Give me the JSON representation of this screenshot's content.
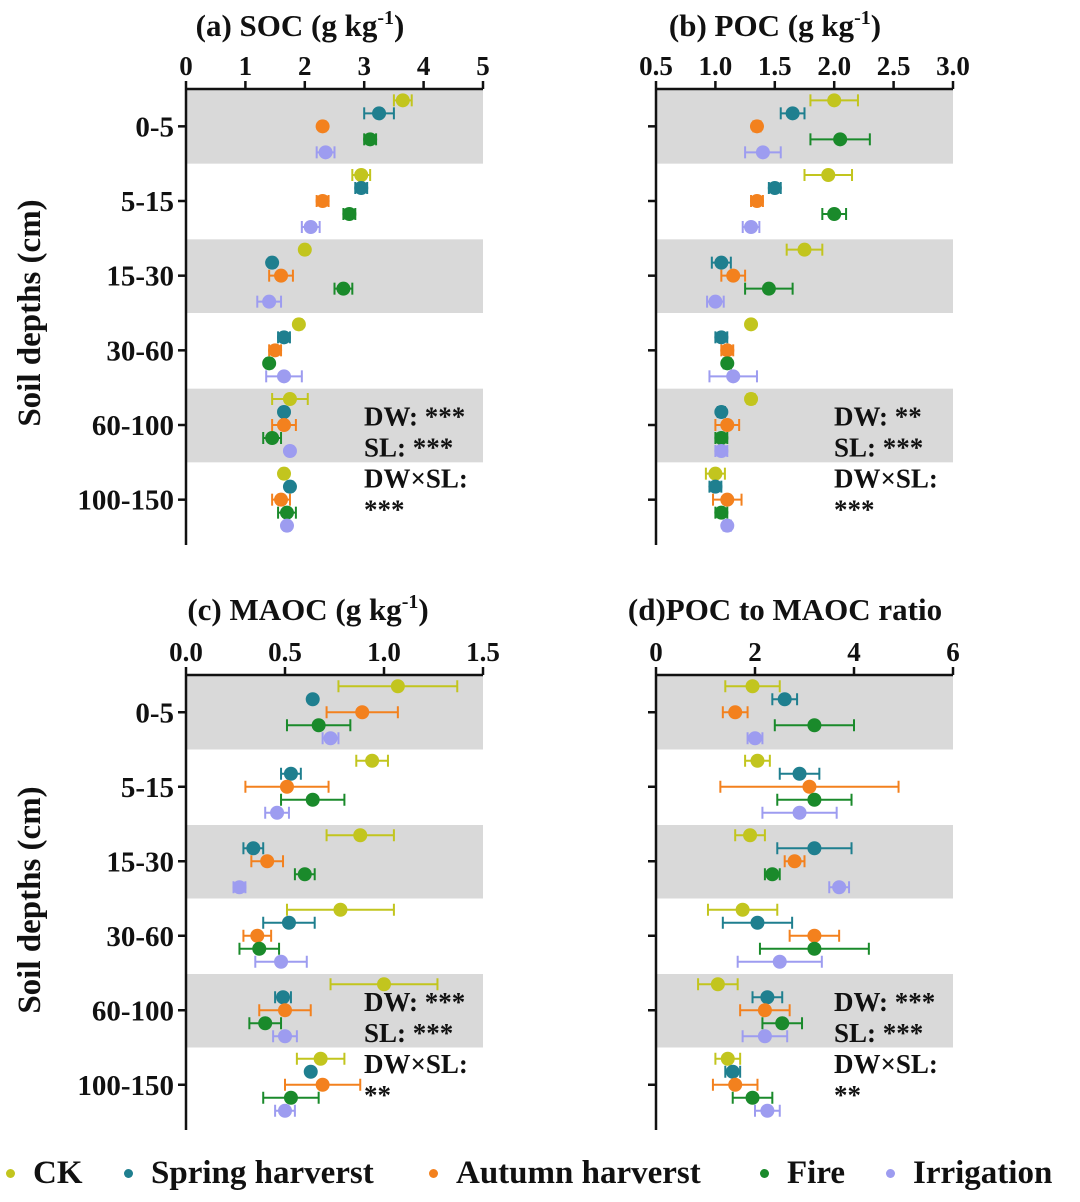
{
  "figure": {
    "y_axis_label": "Soil depths (cm)",
    "depth_labels": [
      "0-5",
      "5-15",
      "15-30",
      "30-60",
      "60-100",
      "100-150"
    ]
  },
  "series": [
    {
      "name": "CK",
      "color": "#c2c51e"
    },
    {
      "name": "Spring harverst",
      "color": "#1f7f8f"
    },
    {
      "name": "Autumn harverst",
      "color": "#f3811e"
    },
    {
      "name": "Fire",
      "color": "#1a8a2b"
    },
    {
      "name": "Irrigation",
      "color": "#9d9cf0"
    }
  ],
  "chart_data": [
    {
      "type": "scatter",
      "title_main": "(a)  SOC (g kg",
      "title_sup": "-1",
      "title_end": ")",
      "xlim": [
        0,
        5
      ],
      "x_ticks": [
        "0",
        "1",
        "2",
        "3",
        "4",
        "5"
      ],
      "categories": [
        "0-5",
        "5-15",
        "15-30",
        "30-60",
        "60-100",
        "100-150"
      ],
      "series": [
        {
          "name": "CK",
          "values": [
            3.65,
            2.95,
            2.0,
            1.9,
            1.75,
            1.65
          ],
          "err": [
            0.15,
            0.15,
            0.05,
            0.05,
            0.3,
            0.05
          ]
        },
        {
          "name": "Spring harverst",
          "values": [
            3.25,
            2.95,
            1.45,
            1.65,
            1.65,
            1.75
          ],
          "err": [
            0.25,
            0.1,
            0.05,
            0.1,
            0.05,
            0.05
          ]
        },
        {
          "name": "Autumn harverst",
          "values": [
            2.3,
            2.3,
            1.6,
            1.5,
            1.65,
            1.6
          ],
          "err": [
            0.05,
            0.1,
            0.2,
            0.1,
            0.2,
            0.15
          ]
        },
        {
          "name": "Fire",
          "values": [
            3.1,
            2.75,
            2.65,
            1.4,
            1.45,
            1.7
          ],
          "err": [
            0.1,
            0.1,
            0.15,
            0.05,
            0.15,
            0.15
          ]
        },
        {
          "name": "Irrigation",
          "values": [
            2.35,
            2.1,
            1.4,
            1.65,
            1.75,
            1.7
          ],
          "err": [
            0.15,
            0.15,
            0.2,
            0.3,
            0.05,
            0.05
          ]
        }
      ],
      "stats": [
        "DW: ***",
        "SL: ***",
        "DW×SL:",
        "***"
      ]
    },
    {
      "type": "scatter",
      "title_main": "(b)  POC (g kg",
      "title_sup": "-1",
      "title_end": ")",
      "xlim": [
        0.5,
        3.0
      ],
      "x_ticks": [
        "0.5",
        "1.0",
        "1.5",
        "2.0",
        "2.5",
        "3.0"
      ],
      "categories": [
        "0-5",
        "5-15",
        "15-30",
        "30-60",
        "60-100",
        "100-150"
      ],
      "series": [
        {
          "name": "CK",
          "values": [
            2.0,
            1.95,
            1.75,
            1.3,
            1.3,
            1.0
          ],
          "err": [
            0.2,
            0.2,
            0.15,
            0.02,
            0.03,
            0.08
          ]
        },
        {
          "name": "Spring harverst",
          "values": [
            1.65,
            1.5,
            1.05,
            1.05,
            1.05,
            1.0
          ],
          "err": [
            0.1,
            0.05,
            0.08,
            0.05,
            0.03,
            0.05
          ]
        },
        {
          "name": "Autumn harverst",
          "values": [
            1.35,
            1.35,
            1.15,
            1.1,
            1.1,
            1.1
          ],
          "err": [
            0.03,
            0.05,
            0.1,
            0.05,
            0.1,
            0.12
          ]
        },
        {
          "name": "Fire",
          "values": [
            2.05,
            2.0,
            1.45,
            1.1,
            1.05,
            1.05
          ],
          "err": [
            0.25,
            0.1,
            0.2,
            0.03,
            0.05,
            0.05
          ]
        },
        {
          "name": "Irrigation",
          "values": [
            1.4,
            1.3,
            1.0,
            1.15,
            1.05,
            1.1
          ],
          "err": [
            0.15,
            0.07,
            0.07,
            0.2,
            0.05,
            0.03
          ]
        }
      ],
      "stats": [
        "DW: **",
        "SL: ***",
        "DW×SL:",
        "***"
      ]
    },
    {
      "type": "scatter",
      "title_main": "(c) MAOC (g kg",
      "title_sup": "-1",
      "title_end": ")",
      "xlim": [
        0.0,
        1.5
      ],
      "x_ticks": [
        "0.0",
        "0.5",
        "1.0",
        "1.5"
      ],
      "categories": [
        "0-5",
        "5-15",
        "15-30",
        "30-60",
        "60-100",
        "100-150"
      ],
      "series": [
        {
          "name": "CK",
          "values": [
            1.07,
            0.94,
            0.88,
            0.78,
            1.0,
            0.68
          ],
          "err": [
            0.3,
            0.08,
            0.17,
            0.27,
            0.27,
            0.12
          ]
        },
        {
          "name": "Spring harverst",
          "values": [
            0.64,
            0.53,
            0.34,
            0.52,
            0.49,
            0.63
          ],
          "err": [
            0.01,
            0.05,
            0.05,
            0.13,
            0.04,
            0.01
          ]
        },
        {
          "name": "Autumn harverst",
          "values": [
            0.89,
            0.51,
            0.41,
            0.36,
            0.5,
            0.69
          ],
          "err": [
            0.18,
            0.21,
            0.08,
            0.07,
            0.13,
            0.19
          ]
        },
        {
          "name": "Fire",
          "values": [
            0.67,
            0.64,
            0.6,
            0.37,
            0.4,
            0.53
          ],
          "err": [
            0.16,
            0.16,
            0.05,
            0.1,
            0.08,
            0.14
          ]
        },
        {
          "name": "Irrigation",
          "values": [
            0.73,
            0.46,
            0.27,
            0.48,
            0.5,
            0.5
          ],
          "err": [
            0.04,
            0.06,
            0.03,
            0.13,
            0.06,
            0.05
          ]
        }
      ],
      "stats": [
        "DW: ***",
        "SL: ***",
        "DW×SL:",
        "**"
      ]
    },
    {
      "type": "scatter",
      "title_main": "(d)POC to MAOC ratio",
      "title_sup": "",
      "title_end": "",
      "xlim": [
        0,
        6
      ],
      "x_ticks": [
        "0",
        "2",
        "4",
        "6"
      ],
      "categories": [
        "0-5",
        "5-15",
        "15-30",
        "30-60",
        "60-100",
        "100-150"
      ],
      "series": [
        {
          "name": "CK",
          "values": [
            1.95,
            2.05,
            1.9,
            1.75,
            1.25,
            1.45
          ],
          "err": [
            0.55,
            0.25,
            0.3,
            0.7,
            0.4,
            0.25
          ]
        },
        {
          "name": "Spring harverst",
          "values": [
            2.6,
            2.9,
            3.2,
            2.05,
            2.25,
            1.55
          ],
          "err": [
            0.25,
            0.4,
            0.75,
            0.7,
            0.3,
            0.15
          ]
        },
        {
          "name": "Autumn harverst",
          "values": [
            1.6,
            3.1,
            2.8,
            3.2,
            2.2,
            1.6
          ],
          "err": [
            0.25,
            1.8,
            0.2,
            0.5,
            0.5,
            0.45
          ]
        },
        {
          "name": "Fire",
          "values": [
            3.2,
            3.2,
            2.35,
            3.2,
            2.55,
            1.95
          ],
          "err": [
            0.8,
            0.75,
            0.15,
            1.1,
            0.4,
            0.4
          ]
        },
        {
          "name": "Irrigation",
          "values": [
            2.0,
            2.9,
            3.7,
            2.5,
            2.2,
            2.25
          ],
          "err": [
            0.15,
            0.75,
            0.2,
            0.85,
            0.45,
            0.25
          ]
        }
      ],
      "stats": [
        "DW: ***",
        "SL: ***",
        "DW×SL:",
        "**"
      ]
    }
  ]
}
